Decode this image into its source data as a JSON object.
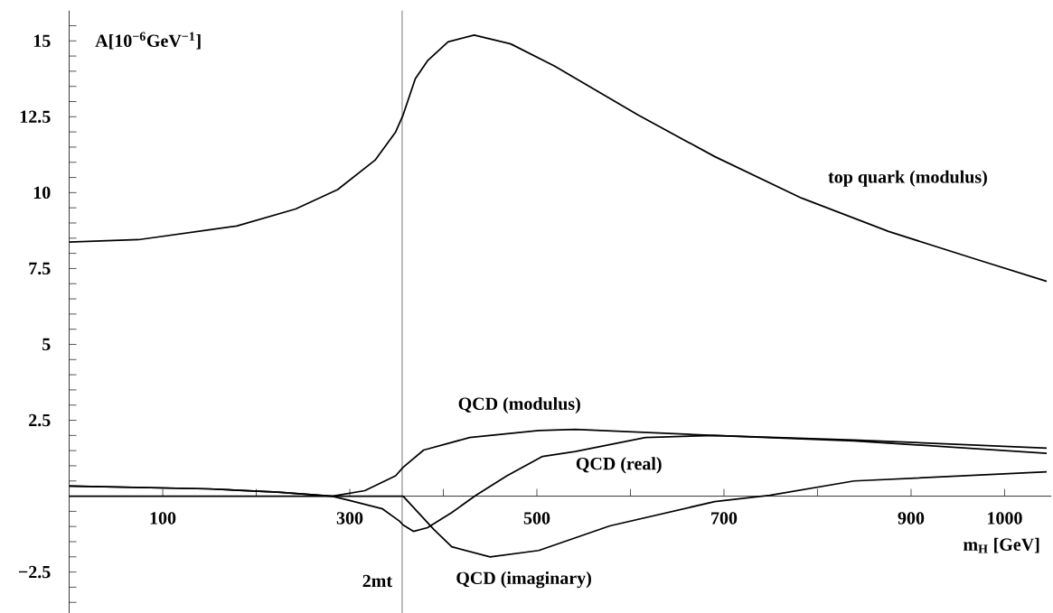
{
  "chart_data": {
    "type": "line",
    "xlabel": "m$_{H}$ [GeV]",
    "ylabel": "A[10$^{−6}$GeV$^{−1}$]",
    "xlim": [
      0,
      1050
    ],
    "ylim": [
      -3.85,
      16
    ],
    "xticks": [
      100,
      {
        "value": 200,
        "label": null
      },
      300,
      {
        "value": 400,
        "label": null
      },
      500,
      {
        "value": 600,
        "label": null
      },
      700,
      {
        "value": 800,
        "label": null
      },
      900,
      1000
    ],
    "yticks": [
      {
        "value": -3.5,
        "label": null
      },
      {
        "value": -3,
        "label": null
      },
      {
        "value": -2.5,
        "label": "−2.5"
      },
      {
        "value": -2,
        "label": null
      },
      {
        "value": -1.5,
        "label": null
      },
      {
        "value": -1,
        "label": null
      },
      {
        "value": -0.5,
        "label": null
      },
      {
        "value": 0.5,
        "label": null
      },
      {
        "value": 1,
        "label": null
      },
      {
        "value": 1.5,
        "label": null
      },
      {
        "value": 2,
        "label": null
      },
      2.5,
      {
        "value": 3,
        "label": null
      },
      {
        "value": 3.5,
        "label": null
      },
      {
        "value": 4,
        "label": null
      },
      {
        "value": 4.5,
        "label": null
      },
      5,
      {
        "value": 5.5,
        "label": null
      },
      {
        "value": 6,
        "label": null
      },
      {
        "value": 6.5,
        "label": null
      },
      {
        "value": 7,
        "label": null
      },
      7.5,
      {
        "value": 8,
        "label": null
      },
      {
        "value": 8.5,
        "label": null
      },
      {
        "value": 9,
        "label": null
      },
      {
        "value": 9.5,
        "label": null
      },
      10,
      {
        "value": 10.5,
        "label": null
      },
      {
        "value": 11,
        "label": null
      },
      {
        "value": 11.5,
        "label": null
      },
      {
        "value": 12,
        "label": null
      },
      12.5,
      {
        "value": 13,
        "label": null
      },
      {
        "value": 13.5,
        "label": null
      },
      {
        "value": 14,
        "label": null
      },
      {
        "value": 14.5,
        "label": null
      },
      15,
      {
        "value": 15.5,
        "label": null
      }
    ],
    "ref_lines": [
      {
        "axis": "x",
        "value": 356,
        "label": "2mt"
      }
    ],
    "series": [
      {
        "name": "top quark (modulus)",
        "color": "#000000",
        "x": [
          0,
          74,
          179,
          242,
          287,
          327,
          349,
          357,
          370,
          383,
          405,
          433,
          472,
          519,
          608,
          690,
          783,
          876,
          969,
          1045
        ],
        "values": [
          8.37,
          8.45,
          8.9,
          9.46,
          10.1,
          11.07,
          12.0,
          12.56,
          13.75,
          14.34,
          14.97,
          15.19,
          14.9,
          14.17,
          12.56,
          11.19,
          9.82,
          8.72,
          7.81,
          7.08
        ]
      },
      {
        "name": "QCD (modulus)",
        "color": "#000000",
        "x": [
          0,
          149,
          223,
          281,
          316,
          349,
          357,
          379,
          428,
          502,
          541,
          690,
          839,
          1045
        ],
        "values": [
          0.33,
          0.24,
          0.13,
          0,
          0.18,
          0.67,
          0.95,
          1.52,
          1.93,
          2.16,
          2.2,
          2.0,
          1.85,
          1.58
        ]
      },
      {
        "name": "QCD (real)",
        "color": "#000000",
        "x": [
          0,
          149,
          223,
          281,
          298,
          335,
          353,
          357,
          368,
          383,
          409,
          435,
          468,
          506,
          541,
          616,
          690,
          839,
          1045
        ],
        "values": [
          0.33,
          0.24,
          0.13,
          0,
          -0.13,
          -0.42,
          -0.82,
          -0.95,
          -1.16,
          -1.04,
          -0.54,
          0.03,
          0.67,
          1.31,
          1.47,
          1.93,
          2.0,
          1.82,
          1.41
        ]
      },
      {
        "name": "QCD (imaginary)",
        "color": "#000000",
        "x": [
          0,
          357,
          390,
          409,
          450,
          502,
          578,
          690,
          749,
          839,
          1045
        ],
        "values": [
          0,
          0,
          -1.1,
          -1.67,
          -2.0,
          -1.79,
          -0.98,
          -0.18,
          0.03,
          0.5,
          0.8
        ]
      }
    ]
  }
}
